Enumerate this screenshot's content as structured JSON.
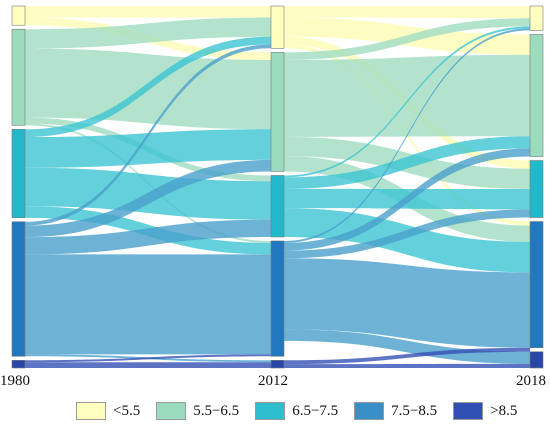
{
  "years": [
    "1980",
    "2012",
    "2018"
  ],
  "categories": [
    {
      "label": "<5.5",
      "color": "#ffffc0"
    },
    {
      "label": "5.5−6.5",
      "color": "#9cdcbe"
    },
    {
      "label": "6.5−7.5",
      "color": "#2ebfcf"
    },
    {
      "label": "7.5−8.5",
      "color": "#3a8fc7"
    },
    {
      "label": ">8.5",
      "color": "#2f4fb3"
    }
  ],
  "node_colors": [
    "#ffffc0",
    "#9cdcbe",
    "#21b8cc",
    "#2278be",
    "#2945a8"
  ],
  "link_colors": [
    "#fdfcb4",
    "#a0dcc0",
    "#3cc4d2",
    "#4aa0cc",
    "#3550b4"
  ],
  "stage_totals": [
    [
      5,
      25,
      23,
      35,
      2
    ],
    [
      11,
      31,
      16,
      30,
      2
    ],
    [
      6,
      30,
      14,
      31,
      4
    ]
  ],
  "flows": [
    {
      "stage": 0,
      "from": 0,
      "to": 0,
      "value": 3
    },
    {
      "stage": 0,
      "from": 0,
      "to": 1,
      "value": 2
    },
    {
      "stage": 0,
      "from": 1,
      "to": 0,
      "value": 5
    },
    {
      "stage": 0,
      "from": 1,
      "to": 1,
      "value": 18
    },
    {
      "stage": 0,
      "from": 1,
      "to": 2,
      "value": 1.5
    },
    {
      "stage": 0,
      "from": 1,
      "to": 3,
      "value": 0.5
    },
    {
      "stage": 0,
      "from": 2,
      "to": 0,
      "value": 2
    },
    {
      "stage": 0,
      "from": 2,
      "to": 1,
      "value": 8
    },
    {
      "stage": 0,
      "from": 2,
      "to": 2,
      "value": 10
    },
    {
      "stage": 0,
      "from": 2,
      "to": 3,
      "value": 3
    },
    {
      "stage": 0,
      "from": 3,
      "to": 0,
      "value": 1
    },
    {
      "stage": 0,
      "from": 3,
      "to": 1,
      "value": 3
    },
    {
      "stage": 0,
      "from": 3,
      "to": 2,
      "value": 4.5
    },
    {
      "stage": 0,
      "from": 3,
      "to": 3,
      "value": 26
    },
    {
      "stage": 0,
      "from": 3,
      "to": 4,
      "value": 0.5
    },
    {
      "stage": 0,
      "from": 4,
      "to": 3,
      "value": 0.5
    },
    {
      "stage": 0,
      "from": 4,
      "to": 4,
      "value": 1.5
    },
    {
      "stage": 1,
      "from": 0,
      "to": 0,
      "value": 3
    },
    {
      "stage": 1,
      "from": 0,
      "to": 1,
      "value": 5
    },
    {
      "stage": 1,
      "from": 0,
      "to": 2,
      "value": 2
    },
    {
      "stage": 1,
      "from": 0,
      "to": 3,
      "value": 1
    },
    {
      "stage": 1,
      "from": 1,
      "to": 0,
      "value": 2
    },
    {
      "stage": 1,
      "from": 1,
      "to": 1,
      "value": 20
    },
    {
      "stage": 1,
      "from": 1,
      "to": 2,
      "value": 5
    },
    {
      "stage": 1,
      "from": 1,
      "to": 3,
      "value": 4
    },
    {
      "stage": 1,
      "from": 2,
      "to": 0,
      "value": 0.5
    },
    {
      "stage": 1,
      "from": 2,
      "to": 1,
      "value": 3
    },
    {
      "stage": 1,
      "from": 2,
      "to": 2,
      "value": 5
    },
    {
      "stage": 1,
      "from": 2,
      "to": 3,
      "value": 7.5
    },
    {
      "stage": 1,
      "from": 3,
      "to": 0,
      "value": 0.5
    },
    {
      "stage": 1,
      "from": 3,
      "to": 1,
      "value": 2
    },
    {
      "stage": 1,
      "from": 3,
      "to": 2,
      "value": 2
    },
    {
      "stage": 1,
      "from": 3,
      "to": 3,
      "value": 18.5
    },
    {
      "stage": 1,
      "from": 3,
      "to": 4,
      "value": 3
    },
    {
      "stage": 1,
      "from": 4,
      "to": 4,
      "value": 1
    },
    {
      "stage": 1,
      "from": 4,
      "to": 3,
      "value": 1
    }
  ]
}
